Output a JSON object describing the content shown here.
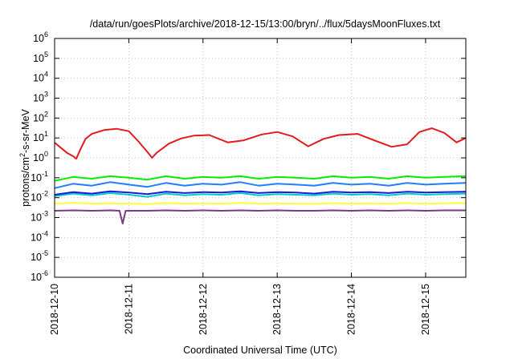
{
  "chart_data": {
    "type": "line",
    "title": "/data/run/goesPlots/archive/2018-12-15/13:00/bryn/../flux/5daysMoonFluxes.txt",
    "xlabel": "Coordinated Universal Time (UTC)",
    "ylabel": "protons/cm²-s-sr-MeV",
    "xlim": [
      "2018-12-10T00:00",
      "2018-12-15T13:00"
    ],
    "ylim": [
      1e-06,
      1000000.0
    ],
    "yscale": "log",
    "grid": true,
    "legend": "none",
    "x_ticks": [
      "2018-12-10",
      "2018-12-11",
      "2018-12-12",
      "2018-12-13",
      "2018-12-14",
      "2018-12-15"
    ],
    "y_ticks": [
      {
        "value": 1e-06,
        "base": "10",
        "exp": "-6"
      },
      {
        "value": 1e-05,
        "base": "10",
        "exp": "-5"
      },
      {
        "value": 0.0001,
        "base": "10",
        "exp": "-4"
      },
      {
        "value": 0.001,
        "base": "10",
        "exp": "-3"
      },
      {
        "value": 0.01,
        "base": "10",
        "exp": "-2"
      },
      {
        "value": 0.1,
        "base": "10",
        "exp": "-1"
      },
      {
        "value": 1,
        "base": "10",
        "exp": "0"
      },
      {
        "value": 10,
        "base": "10",
        "exp": "1"
      },
      {
        "value": 100,
        "base": "10",
        "exp": "2"
      },
      {
        "value": 1000,
        "base": "10",
        "exp": "3"
      },
      {
        "value": 10000,
        "base": "10",
        "exp": "4"
      },
      {
        "value": 100000,
        "base": "10",
        "exp": "5"
      },
      {
        "value": 1000000,
        "base": "10",
        "exp": "6"
      }
    ],
    "series": [
      {
        "color": "#e41a1c",
        "x": [
          "2018-12-10T00:00",
          "2018-12-10T04:00",
          "2018-12-10T06:00",
          "2018-12-10T07:00",
          "2018-12-10T08:30",
          "2018-12-10T10:00",
          "2018-12-10T12:00",
          "2018-12-10T16:00",
          "2018-12-10T20:00",
          "2018-12-11T00:00",
          "2018-12-11T03:00",
          "2018-12-11T06:00",
          "2018-12-11T07:30",
          "2018-12-11T09:00",
          "2018-12-11T13:00",
          "2018-12-11T17:00",
          "2018-12-11T21:00",
          "2018-12-12T02:00",
          "2018-12-12T08:00",
          "2018-12-12T13:00",
          "2018-12-12T19:00",
          "2018-12-13T00:00",
          "2018-12-13T05:00",
          "2018-12-13T10:00",
          "2018-12-13T15:00",
          "2018-12-13T20:00",
          "2018-12-14T02:00",
          "2018-12-14T07:00",
          "2018-12-14T13:00",
          "2018-12-14T18:00",
          "2018-12-14T22:00",
          "2018-12-15T02:00",
          "2018-12-15T06:00",
          "2018-12-15T10:00",
          "2018-12-15T13:00"
        ],
        "y": [
          5.8,
          1.8,
          1.2,
          0.9,
          3.0,
          9.0,
          16,
          25,
          29,
          22,
          7,
          2.0,
          1.0,
          1.8,
          5.2,
          9.5,
          13,
          14,
          6.0,
          7.5,
          15,
          20,
          12,
          3.8,
          9.0,
          14,
          16,
          8.0,
          3.6,
          4.8,
          20,
          31,
          18,
          6.0,
          10
        ]
      },
      {
        "color": "#00ee00",
        "x": [
          "2018-12-10T00:00",
          "2018-12-10T06:00",
          "2018-12-10T12:00",
          "2018-12-10T18:00",
          "2018-12-11T00:00",
          "2018-12-11T06:00",
          "2018-12-11T12:00",
          "2018-12-11T18:00",
          "2018-12-12T00:00",
          "2018-12-12T06:00",
          "2018-12-12T12:00",
          "2018-12-12T18:00",
          "2018-12-13T00:00",
          "2018-12-13T06:00",
          "2018-12-13T12:00",
          "2018-12-13T18:00",
          "2018-12-14T00:00",
          "2018-12-14T06:00",
          "2018-12-14T12:00",
          "2018-12-14T18:00",
          "2018-12-15T00:00",
          "2018-12-15T06:00",
          "2018-12-15T13:00"
        ],
        "y": [
          0.07,
          0.11,
          0.09,
          0.12,
          0.1,
          0.08,
          0.12,
          0.09,
          0.11,
          0.1,
          0.12,
          0.09,
          0.11,
          0.1,
          0.09,
          0.12,
          0.1,
          0.11,
          0.09,
          0.12,
          0.1,
          0.11,
          0.12
        ]
      },
      {
        "color": "#1e7fff",
        "x": [
          "2018-12-10T00:00",
          "2018-12-10T06:00",
          "2018-12-10T12:00",
          "2018-12-10T18:00",
          "2018-12-11T00:00",
          "2018-12-11T06:00",
          "2018-12-11T12:00",
          "2018-12-11T18:00",
          "2018-12-12T00:00",
          "2018-12-12T06:00",
          "2018-12-12T12:00",
          "2018-12-12T18:00",
          "2018-12-13T00:00",
          "2018-12-13T06:00",
          "2018-12-13T12:00",
          "2018-12-13T18:00",
          "2018-12-14T00:00",
          "2018-12-14T06:00",
          "2018-12-14T12:00",
          "2018-12-14T18:00",
          "2018-12-15T00:00",
          "2018-12-15T06:00",
          "2018-12-15T13:00"
        ],
        "y": [
          0.03,
          0.05,
          0.04,
          0.06,
          0.045,
          0.035,
          0.055,
          0.04,
          0.05,
          0.045,
          0.06,
          0.04,
          0.05,
          0.045,
          0.04,
          0.055,
          0.045,
          0.05,
          0.04,
          0.055,
          0.045,
          0.05,
          0.055
        ]
      },
      {
        "color": "#00cccc",
        "x": [
          "2018-12-10T00:00",
          "2018-12-10T06:00",
          "2018-12-10T12:00",
          "2018-12-10T18:00",
          "2018-12-11T00:00",
          "2018-12-11T06:00",
          "2018-12-11T12:00",
          "2018-12-11T18:00",
          "2018-12-12T00:00",
          "2018-12-12T06:00",
          "2018-12-12T12:00",
          "2018-12-12T18:00",
          "2018-12-13T00:00",
          "2018-12-13T06:00",
          "2018-12-13T12:00",
          "2018-12-13T18:00",
          "2018-12-14T00:00",
          "2018-12-14T06:00",
          "2018-12-14T12:00",
          "2018-12-14T18:00",
          "2018-12-15T00:00",
          "2018-12-15T06:00",
          "2018-12-15T13:00"
        ],
        "y": [
          0.012,
          0.016,
          0.013,
          0.017,
          0.014,
          0.011,
          0.016,
          0.013,
          0.015,
          0.014,
          0.017,
          0.013,
          0.015,
          0.014,
          0.013,
          0.016,
          0.014,
          0.015,
          0.013,
          0.016,
          0.014,
          0.015,
          0.016
        ]
      },
      {
        "color": "#1a1adc",
        "x": [
          "2018-12-10T00:00",
          "2018-12-10T06:00",
          "2018-12-10T12:00",
          "2018-12-10T18:00",
          "2018-12-11T00:00",
          "2018-12-11T06:00",
          "2018-12-11T12:00",
          "2018-12-11T18:00",
          "2018-12-12T00:00",
          "2018-12-12T06:00",
          "2018-12-12T12:00",
          "2018-12-12T18:00",
          "2018-12-13T00:00",
          "2018-12-13T06:00",
          "2018-12-13T12:00",
          "2018-12-13T18:00",
          "2018-12-14T00:00",
          "2018-12-14T06:00",
          "2018-12-14T12:00",
          "2018-12-14T18:00",
          "2018-12-15T00:00",
          "2018-12-15T06:00",
          "2018-12-15T13:00"
        ],
        "y": [
          0.014,
          0.019,
          0.016,
          0.021,
          0.018,
          0.015,
          0.02,
          0.017,
          0.019,
          0.018,
          0.021,
          0.017,
          0.019,
          0.018,
          0.016,
          0.02,
          0.018,
          0.019,
          0.017,
          0.02,
          0.018,
          0.019,
          0.02
        ]
      },
      {
        "color": "#ffff33",
        "x": [
          "2018-12-10T00:00",
          "2018-12-10T06:00",
          "2018-12-10T12:00",
          "2018-12-10T18:00",
          "2018-12-11T00:00",
          "2018-12-11T06:00",
          "2018-12-11T12:00",
          "2018-12-11T18:00",
          "2018-12-12T00:00",
          "2018-12-12T06:00",
          "2018-12-12T12:00",
          "2018-12-12T18:00",
          "2018-12-13T00:00",
          "2018-12-13T06:00",
          "2018-12-13T12:00",
          "2018-12-13T18:00",
          "2018-12-14T00:00",
          "2018-12-14T06:00",
          "2018-12-14T12:00",
          "2018-12-14T18:00",
          "2018-12-15T00:00",
          "2018-12-15T06:00",
          "2018-12-15T13:00"
        ],
        "y": [
          0.005,
          0.0055,
          0.005,
          0.0052,
          0.005,
          0.0048,
          0.0053,
          0.005,
          0.0052,
          0.005,
          0.0054,
          0.005,
          0.0052,
          0.005,
          0.0049,
          0.0053,
          0.005,
          0.0052,
          0.005,
          0.0053,
          0.005,
          0.0052,
          0.0053
        ]
      },
      {
        "color": "#7b3a86",
        "x": [
          "2018-12-10T00:00",
          "2018-12-10T06:00",
          "2018-12-10T12:00",
          "2018-12-10T18:00",
          "2018-12-10T21:00",
          "2018-12-10T22:00",
          "2018-12-10T23:00",
          "2018-12-11T06:00",
          "2018-12-11T12:00",
          "2018-12-11T18:00",
          "2018-12-12T00:00",
          "2018-12-12T06:00",
          "2018-12-12T12:00",
          "2018-12-12T18:00",
          "2018-12-13T00:00",
          "2018-12-13T06:00",
          "2018-12-13T12:00",
          "2018-12-13T18:00",
          "2018-12-14T00:00",
          "2018-12-14T06:00",
          "2018-12-14T12:00",
          "2018-12-14T18:00",
          "2018-12-15T00:00",
          "2018-12-15T06:00",
          "2018-12-15T13:00"
        ],
        "y": [
          0.0022,
          0.0023,
          0.0022,
          0.0023,
          0.0022,
          0.0005,
          0.0022,
          0.0022,
          0.0023,
          0.0022,
          0.0023,
          0.0022,
          0.0023,
          0.0022,
          0.0023,
          0.0022,
          0.0022,
          0.0023,
          0.0022,
          0.0023,
          0.0022,
          0.0023,
          0.0022,
          0.0023,
          0.0023
        ]
      }
    ]
  }
}
